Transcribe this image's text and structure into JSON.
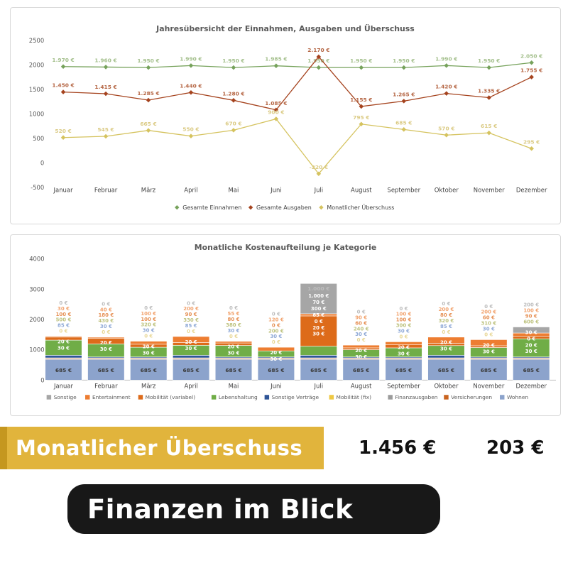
{
  "page": {
    "background": "#ffffff"
  },
  "chart_data": [
    {
      "type": "line",
      "title": "Jahresübersicht der Einnahmen, Ausgaben und Überschuss",
      "categories": [
        "Januar",
        "Februar",
        "März",
        "April",
        "Mai",
        "Juni",
        "Juli",
        "August",
        "September",
        "Oktober",
        "November",
        "Dezember"
      ],
      "ylim": [
        -500,
        2500
      ],
      "yticks": [
        2500,
        2000,
        1500,
        1000,
        500,
        0,
        -500
      ],
      "grid": false,
      "marker": "diamond",
      "legend_position": "bottom",
      "currency_suffix": " €",
      "series": [
        {
          "name": "Gesamte Einnahmen",
          "color": "#76A25B",
          "label_color": "#A3BF8B",
          "values": [
            1970,
            1960,
            1950,
            1990,
            1950,
            1985,
            1950,
            1950,
            1950,
            1990,
            1950,
            2050
          ]
        },
        {
          "name": "Gesamte Ausgaben",
          "color": "#A5431E",
          "label_color": "#B56644",
          "values": [
            1450,
            1415,
            1285,
            1440,
            1280,
            1085,
            2170,
            1155,
            1265,
            1420,
            1335,
            1755
          ]
        },
        {
          "name": "Monatlicher Überschuss",
          "color": "#D5C35F",
          "label_color": "#DBCB85",
          "values": [
            520,
            545,
            665,
            550,
            670,
            900,
            -220,
            795,
            685,
            570,
            615,
            295
          ]
        }
      ]
    },
    {
      "type": "bar",
      "stacked": true,
      "title": "Monatliche Kostenaufteilung je Kategorie",
      "categories": [
        "Januar",
        "Februar",
        "März",
        "April",
        "Mai",
        "Juni",
        "Juli",
        "August",
        "September",
        "Oktober",
        "November",
        "Dezember"
      ],
      "ylim": [
        0,
        4000
      ],
      "yticks": [
        4000,
        3000,
        2000,
        1000,
        0
      ],
      "grid": false,
      "legend_position": "bottom",
      "currency_suffix": " €",
      "series": [
        {
          "name": "Sonstige",
          "color": "#A6A6A6",
          "label_color": "#BDBDBD",
          "values": [
            0,
            0,
            0,
            0,
            0,
            0,
            1000,
            0,
            0,
            0,
            0,
            200
          ]
        },
        {
          "name": "Entertainment",
          "color": "#ED7D31",
          "label_color": "#F2A36E",
          "values": [
            30,
            40,
            100,
            200,
            55,
            120,
            70,
            90,
            100,
            200,
            200,
            100
          ]
        },
        {
          "name": "Mobilität (variabel)",
          "color": "#DD6B1A",
          "label_color": "#E69054",
          "values": [
            100,
            180,
            100,
            90,
            80,
            0,
            1000,
            60,
            100,
            80,
            60,
            90
          ]
        },
        {
          "name": "Lebenshaltung",
          "color": "#70AD47",
          "label_color": "#BDC27E",
          "values": [
            500,
            430,
            320,
            330,
            380,
            200,
            300,
            240,
            300,
            320,
            310,
            600
          ]
        },
        {
          "name": "Sonstige Verträge",
          "color": "#2F5597",
          "label_color": "#8FA9D6",
          "values": [
            85,
            30,
            30,
            85,
            30,
            30,
            85,
            30,
            30,
            85,
            30,
            30
          ]
        },
        {
          "name": "Mobilität (fix)",
          "color": "#EEC843",
          "label_color": "#E8D795",
          "values": [
            0,
            0,
            0,
            0,
            0,
            0,
            0,
            0,
            0,
            0,
            0,
            0
          ]
        },
        {
          "name": "Finanzausgaben",
          "color": "#9B9B9B",
          "label_color": "#ffffff",
          "values": [
            20,
            20,
            20,
            20,
            20,
            20,
            20,
            20,
            20,
            20,
            20,
            20
          ]
        },
        {
          "name": "Versicherungen",
          "color": "#C9641F",
          "label_color": "#ffffff",
          "values": [
            30,
            30,
            30,
            30,
            30,
            30,
            30,
            30,
            30,
            30,
            30,
            30
          ]
        },
        {
          "name": "Wohnen",
          "color": "#8CA3CC",
          "label_color": "#3A3A3A",
          "values": [
            685,
            685,
            685,
            685,
            685,
            685,
            685,
            685,
            685,
            685,
            685,
            685
          ]
        }
      ],
      "label_layout": {
        "default": {
          "above": [
            0,
            1,
            2,
            3,
            4,
            5
          ],
          "inside_white": [
            6,
            7
          ],
          "inside_dark": [
            8
          ]
        },
        "Juli": {
          "above": [],
          "inside_white": [
            2,
            1,
            3,
            4,
            5,
            6,
            7
          ],
          "inside_dark": [
            0,
            8
          ]
        },
        "Dezember": {
          "above": [
            0,
            1,
            2,
            3
          ],
          "inside_white": [
            4,
            5,
            6,
            7
          ],
          "inside_dark": [
            8
          ]
        }
      }
    }
  ],
  "summary_bar": {
    "label": "Monatlicher Überschuss",
    "value_1": "1.456 €",
    "value_2": "203 €",
    "background": "#E1B43C",
    "edge_color": "#C5971F",
    "text_color": "#ffffff",
    "value_color": "#111111"
  },
  "footer_banner": {
    "title": "Finanzen im Blick",
    "background": "#181818",
    "text_color": "#ffffff"
  }
}
